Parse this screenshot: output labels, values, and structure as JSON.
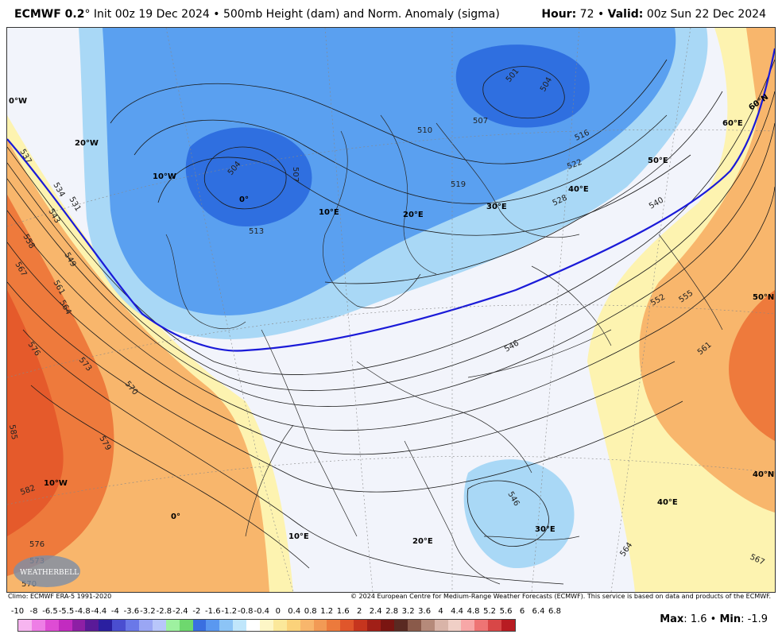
{
  "header": {
    "model": "ECMWF 0.2",
    "degree": "°",
    "init": "Init 00z 19 Dec 2024",
    "bullet": "•",
    "product": "500mb Height (dam) and Norm. Anomaly (sigma)",
    "hour_label": "Hour",
    "hour_value": "72",
    "valid_label": "Valid",
    "valid_value": "00z Sun 22 Dec 2024"
  },
  "map": {
    "longitude_labels": [
      "0°W",
      "20°W",
      "10°W",
      "0°",
      "10°E",
      "20°E",
      "30°E",
      "40°E",
      "50°E",
      "60°E",
      "10°W",
      "0°",
      "10°E",
      "20°E",
      "30°E",
      "40°E"
    ],
    "latitude_labels": [
      "60°N",
      "50°N",
      "40°N"
    ],
    "height_contour_labels": [
      "537",
      "534",
      "531",
      "543",
      "558",
      "549",
      "567",
      "561",
      "564",
      "576",
      "573",
      "570",
      "585",
      "579",
      "582",
      "576",
      "573",
      "570",
      "504",
      "507",
      "513",
      "501",
      "504",
      "507",
      "510",
      "516",
      "519",
      "522",
      "528",
      "540",
      "552",
      "555",
      "561",
      "564",
      "567",
      "546",
      "546"
    ],
    "colors": {
      "deep_low": "#2f6fe0",
      "low": "#5aa0f0",
      "light_low": "#a9d8f6",
      "neutral": "#f2f4fb",
      "light_high": "#fdf3b0",
      "high": "#f8b66c",
      "strong_high": "#ee7a3c",
      "very_high": "#e55a2b",
      "line_540": "#1a1ad8"
    },
    "logo_text": "WEATHERBELL"
  },
  "footer": {
    "climo": "Climo: ECMWF ERA-5 1991-2020",
    "copyright": "© 2024 European Centre for Medium-Range Weather Forecasts (ECMWF). This service is based on data and products of the ECMWF."
  },
  "colorbar": {
    "labels": [
      "-10",
      "-8",
      "-6.5",
      "-5.5",
      "-4.8",
      "-4.4",
      "-4",
      "-3.6",
      "-3.2",
      "-2.8",
      "-2.4",
      "-2",
      "-1.6",
      "-1.2",
      "-0.8",
      "-0.4",
      "0",
      "0.4",
      "0.8",
      "1.2",
      "1.6",
      "2",
      "2.4",
      "2.8",
      "3.2",
      "3.6",
      "4",
      "4.4",
      "4.8",
      "5.2",
      "5.6",
      "6",
      "6.4",
      "6.8"
    ],
    "colors": [
      "#f7b5f0",
      "#ee7ee6",
      "#de4cd4",
      "#c22bc0",
      "#8e1fa5",
      "#5a1a98",
      "#2a1fa0",
      "#4a4ed0",
      "#6a78e8",
      "#9aa6f4",
      "#b8c6fa",
      "#9ef1a0",
      "#6ed86e",
      "#3a6fe0",
      "#5a98f0",
      "#8cc4f6",
      "#c0e6fb",
      "#ffffff",
      "#fdf6c6",
      "#fbe89a",
      "#fbd27a",
      "#f8b66c",
      "#f29a55",
      "#ec7a3c",
      "#e0562b",
      "#c6351e",
      "#a11f17",
      "#7a1511",
      "#5a2a22",
      "#8a5a4a",
      "#b58a7a",
      "#d9b4a8",
      "#f0cfc6",
      "#f7a7a7",
      "#ee7474",
      "#d84747",
      "#b81c22"
    ]
  },
  "stats": {
    "max_label": "Max",
    "max_value": "1.6",
    "min_label": "Min",
    "min_value": "-1.9"
  }
}
